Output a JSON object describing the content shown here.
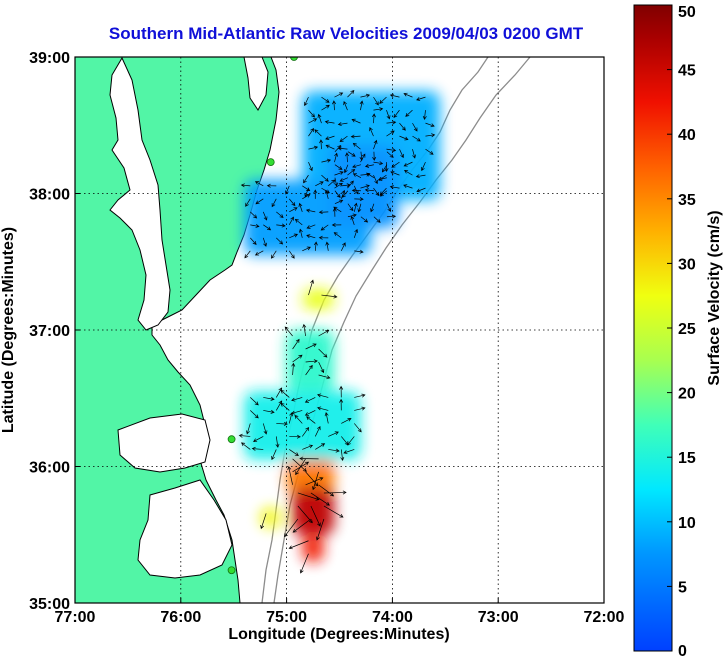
{
  "chart_data": {
    "type": "heatmap",
    "title": "Southern Mid-Atlantic Raw Velocities 2009/04/03 0200 GMT",
    "xlabel": "Longitude (Degrees:Minutes)",
    "ylabel": "Latitude (Degrees:Minutes)",
    "xlim": [
      -77,
      -72
    ],
    "ylim": [
      35,
      39
    ],
    "x_ticks": [
      {
        "value": -77,
        "label": "77:00"
      },
      {
        "value": -76,
        "label": "76:00"
      },
      {
        "value": -75,
        "label": "75:00"
      },
      {
        "value": -74,
        "label": "74:00"
      },
      {
        "value": -73,
        "label": "73:00"
      },
      {
        "value": -72,
        "label": "72:00"
      }
    ],
    "y_ticks": [
      {
        "value": 35,
        "label": "35:00"
      },
      {
        "value": 36,
        "label": "36:00"
      },
      {
        "value": 37,
        "label": "37:00"
      },
      {
        "value": 38,
        "label": "38:00"
      },
      {
        "value": 39,
        "label": "39:00"
      }
    ],
    "grid": true,
    "colorbar": {
      "label": "Surface Velocity (cm/s)",
      "min": 0,
      "max": 50,
      "ticks": [
        {
          "value": 0,
          "label": "0"
        },
        {
          "value": 5,
          "label": "5"
        },
        {
          "value": 10,
          "label": "10"
        },
        {
          "value": 15,
          "label": "15"
        },
        {
          "value": 20,
          "label": "20"
        },
        {
          "value": 25,
          "label": "25"
        },
        {
          "value": 30,
          "label": "30"
        },
        {
          "value": 35,
          "label": "35"
        },
        {
          "value": 40,
          "label": "40"
        },
        {
          "value": 45,
          "label": "45"
        },
        {
          "value": 50,
          "label": "50"
        }
      ]
    },
    "regions": [
      {
        "lon": [
          -74.85,
          -73.55
        ],
        "lat": [
          37.95,
          38.75
        ],
        "speed": 9
      },
      {
        "lon": [
          -75.4,
          -74.2
        ],
        "lat": [
          37.55,
          38.1
        ],
        "speed": 8
      },
      {
        "lon": [
          -74.6,
          -73.95
        ],
        "lat": [
          37.75,
          38.35
        ],
        "speed": 7
      },
      {
        "lon": [
          -74.85,
          -74.55
        ],
        "lat": [
          37.15,
          37.3
        ],
        "speed": 27
      },
      {
        "lon": [
          -75.0,
          -74.55
        ],
        "lat": [
          35.8,
          36.1
        ],
        "speed": 36
      },
      {
        "lon": [
          -74.95,
          -74.55
        ],
        "lat": [
          35.5,
          35.85
        ],
        "speed": 46
      },
      {
        "lon": [
          -74.85,
          -74.65
        ],
        "lat": [
          35.3,
          35.5
        ],
        "speed": 42
      },
      {
        "lon": [
          -75.25,
          -75.05
        ],
        "lat": [
          35.55,
          35.7
        ],
        "speed": 28
      },
      {
        "lon": [
          -75.4,
          -74.3
        ],
        "lat": [
          36.05,
          36.55
        ],
        "speed": 14
      },
      {
        "lon": [
          -75.0,
          -74.55
        ],
        "lat": [
          36.55,
          37.0
        ],
        "speed": 16
      }
    ],
    "stations": [
      {
        "lon": -74.93,
        "lat": 39.0
      },
      {
        "lon": -75.15,
        "lat": 38.23
      },
      {
        "lon": -75.52,
        "lat": 36.2
      },
      {
        "lon": -75.52,
        "lat": 35.24
      }
    ]
  }
}
